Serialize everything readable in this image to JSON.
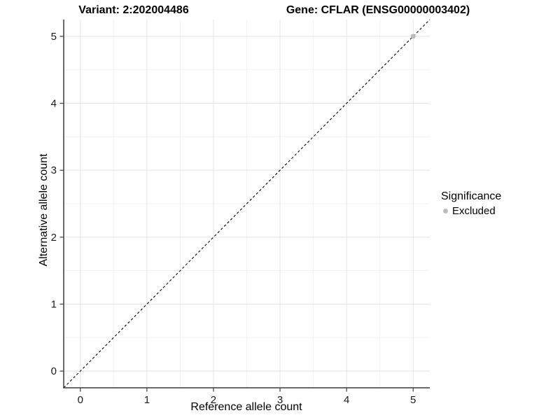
{
  "titles": {
    "variant": "Variant: 2:202004486",
    "gene": "Gene: CFLAR (ENSG00000003402)"
  },
  "legend": {
    "title": "Significance",
    "items": [
      {
        "label": "Excluded",
        "color": "#bdbdbd"
      }
    ]
  },
  "chart_data": {
    "type": "scatter",
    "xlabel": "Reference allele count",
    "ylabel": "Alternative allele count",
    "xlim": [
      -0.25,
      5.25
    ],
    "ylim": [
      -0.25,
      5.25
    ],
    "xticks": [
      0,
      1,
      2,
      3,
      4,
      5
    ],
    "yticks": [
      0,
      1,
      2,
      3,
      4,
      5
    ],
    "minor_ticks": [
      0.5,
      1.5,
      2.5,
      3.5,
      4.5
    ],
    "grid": true,
    "legend_position": "right",
    "colors": {
      "grid_major": "#e4e4e4",
      "grid_minor": "#f1f1f1",
      "axis": "#3c3c3c",
      "tick_label": "#1a1a1a",
      "identity_line": "#000000"
    },
    "identity_line": {
      "type": "abline",
      "slope": 1,
      "intercept": 0,
      "style": "dashed"
    },
    "series": [
      {
        "name": "Excluded",
        "color": "#bdbdbd",
        "points": [
          {
            "x": 5,
            "y": 5
          }
        ]
      }
    ]
  }
}
